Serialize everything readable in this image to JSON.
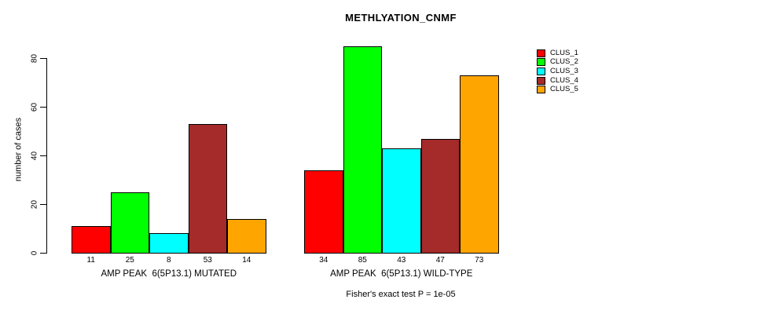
{
  "chart_data": {
    "type": "bar",
    "title": "METHLYATION_CNMF",
    "ylabel": "number of cases",
    "xlabel": "",
    "ylim": [
      0,
      85
    ],
    "yticks": [
      0,
      20,
      40,
      60,
      80
    ],
    "grid": false,
    "legend_position": "right",
    "background": "#ffffff",
    "axis_color": "#000000",
    "categories": [
      "AMP PEAK  6(5P13.1) MUTATED",
      "AMP PEAK  6(5P13.1) WILD-TYPE"
    ],
    "series": [
      {
        "name": "CLUS_1",
        "color": "#ff0000",
        "values": [
          11,
          34
        ]
      },
      {
        "name": "CLUS_2",
        "color": "#00ff00",
        "values": [
          25,
          85
        ]
      },
      {
        "name": "CLUS_3",
        "color": "#00ffff",
        "values": [
          8,
          43
        ]
      },
      {
        "name": "CLUS_4",
        "color": "#a52a2a",
        "values": [
          53,
          47
        ]
      },
      {
        "name": "CLUS_5",
        "color": "#ffa500",
        "values": [
          14,
          73
        ]
      }
    ],
    "bar_value_labels": {
      "AMP PEAK  6(5P13.1) MUTATED": [
        11,
        25,
        8,
        53,
        14
      ],
      "AMP PEAK  6(5P13.1) WILD-TYPE": [
        34,
        85,
        43,
        47,
        73
      ]
    },
    "footnote": "Fisher's exact test P = 1e-05"
  }
}
